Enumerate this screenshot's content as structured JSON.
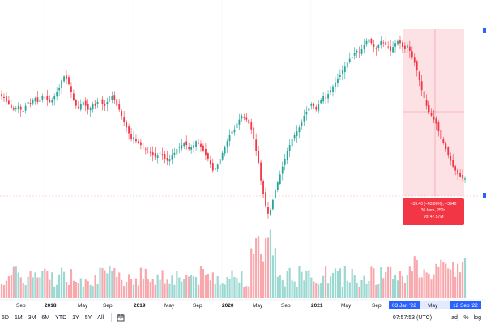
{
  "colors": {
    "up": "#26a69a",
    "down": "#f23645",
    "up_volume": "#9bd8d2",
    "down_volume": "#f8a7ac",
    "selection_fill": "#fcdde0",
    "accent": "#2962ff",
    "grid": "#f0f3fa"
  },
  "x_axis": {
    "labels": [
      {
        "text": "Sep",
        "bold": false
      },
      {
        "text": "2018",
        "bold": true
      },
      {
        "text": "May",
        "bold": false
      },
      {
        "text": "Sep",
        "bold": false
      },
      {
        "text": "2019",
        "bold": true
      },
      {
        "text": "May",
        "bold": false
      },
      {
        "text": "Sep",
        "bold": false
      },
      {
        "text": "2020",
        "bold": true
      },
      {
        "text": "May",
        "bold": false
      },
      {
        "text": "Sep",
        "bold": false
      },
      {
        "text": "2021",
        "bold": true
      },
      {
        "text": "May",
        "bold": false
      },
      {
        "text": "Sep",
        "bold": false
      }
    ],
    "selection": {
      "start_label": "03 Jan '22",
      "mid_label": "May",
      "end_label": "12 Sep '22"
    }
  },
  "measure_tooltip": {
    "line1": "−39.40 (−43.86%), −3940",
    "line2": "36 bars, 252d",
    "line3": "Vol 47.57M"
  },
  "toolbar": {
    "ranges": [
      "5D",
      "1M",
      "3M",
      "6M",
      "YTD",
      "1Y",
      "5Y",
      "All"
    ],
    "calendar_icon": "calendar-goto-icon",
    "clock": "07:57:53 (UTC)",
    "adj": "adj",
    "percent": "%",
    "log": "log"
  },
  "chart_data": {
    "type": "candlestick",
    "interval": "weekly",
    "y_label_visible": false,
    "volume_visible": true,
    "measure_range": {
      "from": "03 Jan '22",
      "to": "12 Sep '22",
      "change": -39.4,
      "change_pct": -43.86,
      "bars": 36,
      "days": 252,
      "volume": "47.57M"
    },
    "close_series": [
      106,
      105,
      103,
      102,
      100,
      99,
      100,
      101,
      99,
      98,
      101,
      103,
      102,
      104,
      105,
      103,
      104,
      106,
      105,
      104,
      103,
      104,
      106,
      108,
      110,
      114,
      116,
      115,
      112,
      108,
      104,
      101,
      100,
      102,
      103,
      101,
      99,
      100,
      102,
      101,
      103,
      104,
      102,
      101,
      103,
      104,
      106,
      104,
      101,
      99,
      96,
      93,
      90,
      87,
      84,
      85,
      83,
      82,
      81,
      80,
      79,
      78,
      77,
      76,
      75,
      76,
      77,
      76,
      74,
      73,
      74,
      76,
      77,
      79,
      80,
      81,
      82,
      81,
      79,
      80,
      81,
      83,
      82,
      80,
      78,
      76,
      74,
      71,
      68,
      69,
      71,
      74,
      77,
      80,
      83,
      86,
      88,
      89,
      92,
      94,
      96,
      95,
      94,
      92,
      89,
      84,
      78,
      72,
      63,
      56,
      50,
      46,
      48,
      53,
      58,
      62,
      66,
      70,
      74,
      78,
      81,
      84,
      86,
      88,
      90,
      93,
      96,
      98,
      100,
      102,
      101,
      99,
      102,
      104,
      106,
      105,
      107,
      109,
      111,
      113,
      115,
      117,
      119,
      121,
      123,
      125,
      126,
      128,
      129,
      128,
      130,
      132,
      134,
      135,
      133,
      131,
      130,
      132,
      134,
      133,
      132,
      131,
      129,
      131,
      133,
      134,
      133,
      131,
      130,
      132,
      129,
      126,
      123,
      119,
      114,
      109,
      105,
      101,
      98,
      96,
      94,
      92,
      88,
      84,
      82,
      79,
      76,
      73,
      70,
      68,
      66,
      65,
      64,
      64
    ]
  }
}
